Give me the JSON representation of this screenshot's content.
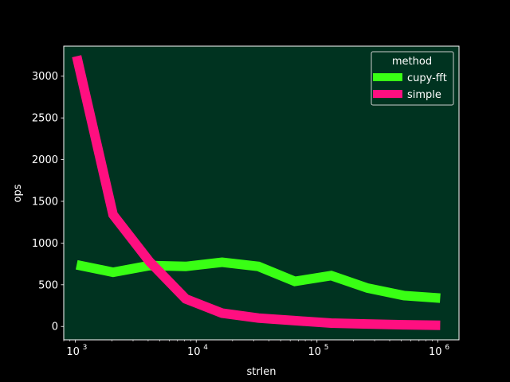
{
  "chart_data": {
    "type": "line",
    "xlabel": "strlen",
    "ylabel": "ops",
    "xscale": "log",
    "xlim": [
      800,
      1500000
    ],
    "ylim": [
      -160,
      3360
    ],
    "x_ticks": [
      1000,
      10000,
      100000,
      1000000
    ],
    "x_tick_labels": [
      {
        "base": "10",
        "exp": "3"
      },
      {
        "base": "10",
        "exp": "4"
      },
      {
        "base": "10",
        "exp": "5"
      },
      {
        "base": "10",
        "exp": "6"
      }
    ],
    "y_ticks": [
      0,
      500,
      1000,
      1500,
      2000,
      2500,
      3000
    ],
    "y_tick_labels": [
      "0",
      "500",
      "1000",
      "1500",
      "2000",
      "2500",
      "3000"
    ],
    "x": [
      1024,
      2048,
      4096,
      8192,
      16384,
      32768,
      65536,
      131072,
      262144,
      524288,
      1048576
    ],
    "series": [
      {
        "name": "cupy-fft",
        "color": "#39ff14",
        "values": [
          740,
          650,
          730,
          720,
          770,
          720,
          540,
          610,
          460,
          370,
          340
        ]
      },
      {
        "name": "simple",
        "color": "#ff0f80",
        "values": [
          3240,
          1340,
          780,
          330,
          160,
          100,
          70,
          40,
          30,
          20,
          15
        ]
      }
    ],
    "legend": {
      "title": "method",
      "placement": "top-right"
    },
    "plot_background": "#003320",
    "figure_background": "#000000",
    "grid": false
  }
}
